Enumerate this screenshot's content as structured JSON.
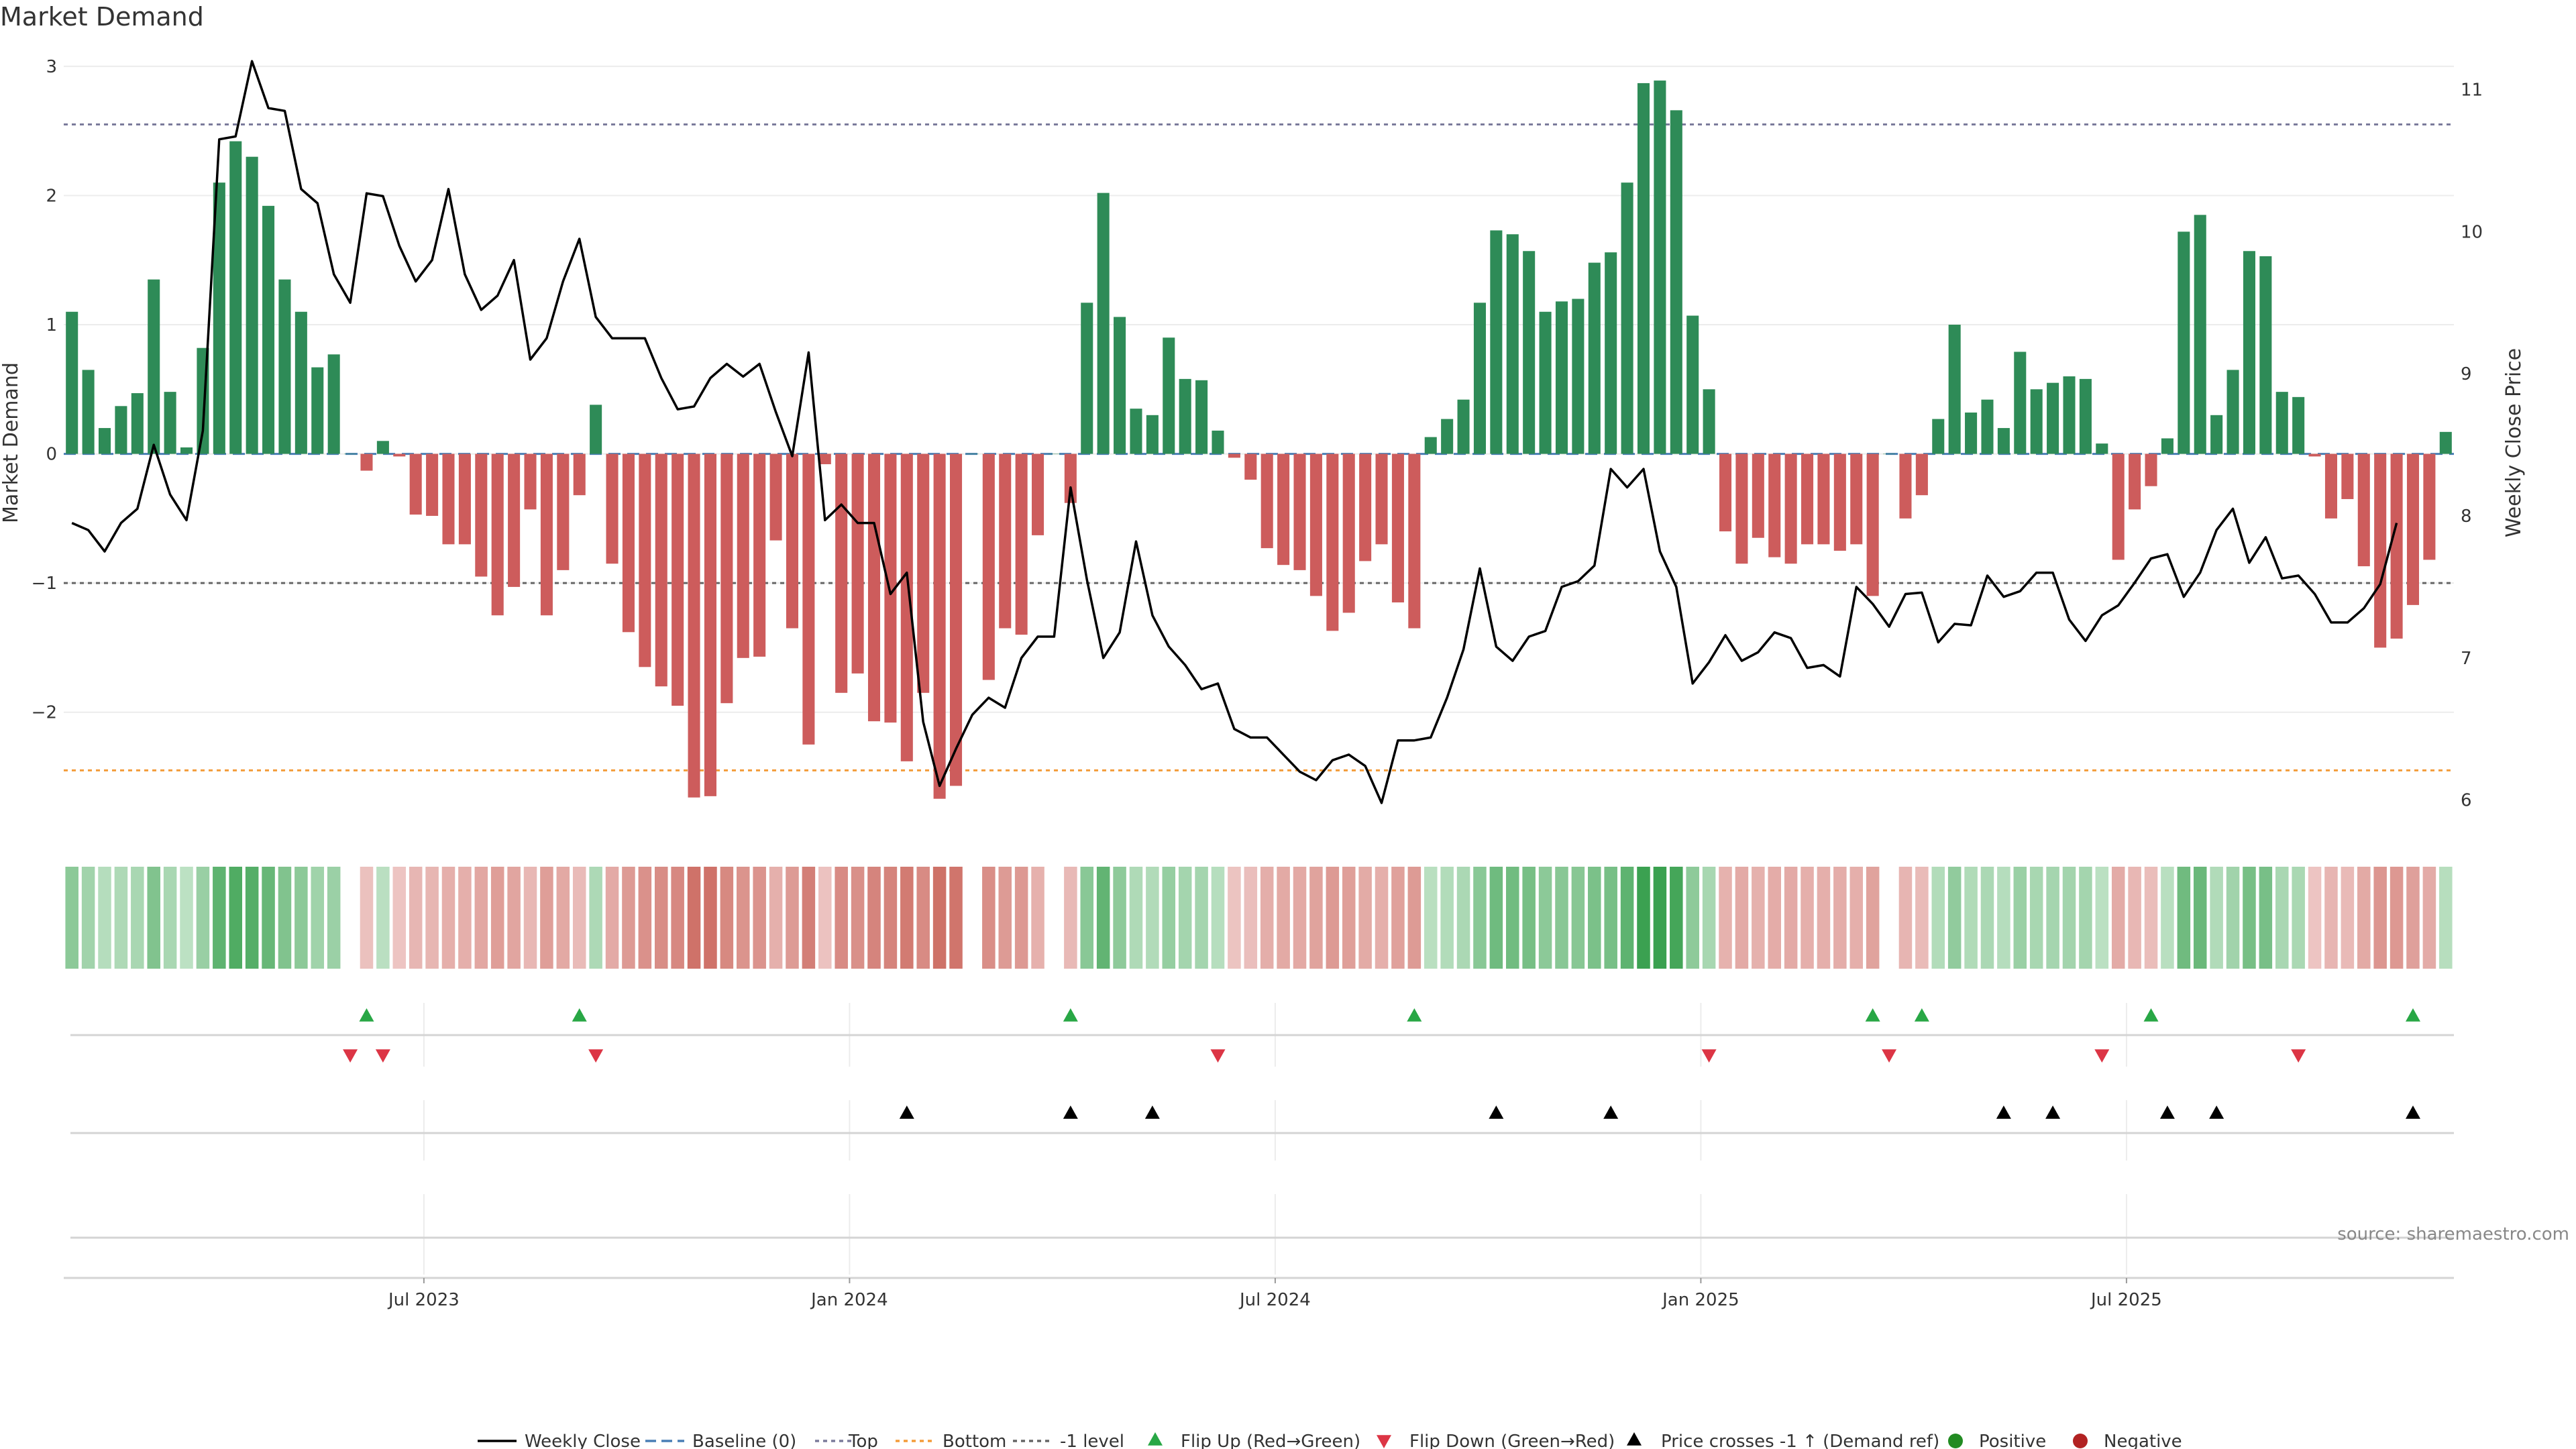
{
  "chart_data": {
    "type": "bar",
    "title": "Market Demand",
    "ylabel": "Market Demand",
    "ylabel_right": "Weekly Close Price",
    "ylim": [
      -2.9,
      3.15
    ],
    "ylim_right": [
      5.8,
      11.3
    ],
    "yticks": [
      {
        "v": 3,
        "label": "3"
      },
      {
        "v": 2,
        "label": "2"
      },
      {
        "v": 1,
        "label": "1"
      },
      {
        "v": 0,
        "label": "0"
      },
      {
        "v": -1,
        "label": "−1"
      },
      {
        "v": -2,
        "label": "−2"
      }
    ],
    "yticks_right": [
      {
        "v": 11,
        "label": "11"
      },
      {
        "v": 10,
        "label": "10"
      },
      {
        "v": 9,
        "label": "9"
      },
      {
        "v": 8,
        "label": "8"
      },
      {
        "v": 7,
        "label": "7"
      },
      {
        "v": 6,
        "label": "6"
      }
    ],
    "reference_lines": {
      "top": 2.55,
      "bottom": -2.45,
      "minus_one": -1,
      "baseline": 0
    },
    "x_ticks": [
      {
        "index": 22,
        "label": "Jul 2023"
      },
      {
        "index": 48,
        "label": "Jan 2024"
      },
      {
        "index": 74,
        "label": "Jul 2024"
      },
      {
        "index": 100,
        "label": "Jan 2025"
      },
      {
        "index": 126,
        "label": "Jul 2025"
      }
    ],
    "demand": [
      1.1,
      0.65,
      0.2,
      0.37,
      0.47,
      1.35,
      0.48,
      0.05,
      0.82,
      2.1,
      2.42,
      2.3,
      1.92,
      1.35,
      1.1,
      0.67,
      0.77,
      0,
      -0.13,
      0.1,
      -0.02,
      -0.47,
      -0.48,
      -0.7,
      -0.7,
      -0.95,
      -1.25,
      -1.03,
      -0.43,
      -1.25,
      -0.9,
      -0.32,
      0.38,
      -0.85,
      -1.38,
      -1.65,
      -1.8,
      -1.95,
      -2.66,
      -2.65,
      -1.93,
      -1.58,
      -1.57,
      -0.67,
      -1.35,
      -2.25,
      -0.08,
      -1.85,
      -1.7,
      -2.07,
      -2.08,
      -2.38,
      -1.85,
      -2.67,
      -2.57,
      0,
      -1.75,
      -1.35,
      -1.4,
      -0.63,
      0,
      -0.38,
      1.17,
      2.02,
      1.06,
      0.35,
      0.3,
      0.9,
      0.58,
      0.57,
      0.18,
      -0.03,
      -0.2,
      -0.73,
      -0.86,
      -0.9,
      -1.1,
      -1.37,
      -1.23,
      -0.83,
      -0.7,
      -1.15,
      -1.35,
      0.13,
      0.27,
      0.42,
      1.17,
      1.73,
      1.7,
      1.57,
      1.1,
      1.18,
      1.2,
      1.48,
      1.56,
      2.1,
      2.87,
      2.89,
      2.66,
      1.07,
      0.5,
      -0.6,
      -0.85,
      -0.65,
      -0.8,
      -0.85,
      -0.7,
      -0.7,
      -0.75,
      -0.7,
      -1.1,
      0,
      -0.5,
      -0.32,
      0.27,
      1.0,
      0.32,
      0.42,
      0.2,
      0.79,
      0.5,
      0.55,
      0.6,
      0.58,
      0.08,
      -0.82,
      -0.43,
      -0.25,
      0.12,
      1.72,
      1.85,
      0.3,
      0.65,
      1.57,
      1.53,
      0.48,
      0.44,
      -0.02,
      -0.5,
      -0.35,
      -0.87,
      -1.5,
      -1.43,
      -1.17,
      -0.82,
      0.17
    ],
    "close": [
      7.95,
      7.9,
      7.75,
      7.95,
      8.05,
      8.5,
      8.15,
      7.97,
      8.6,
      10.65,
      10.67,
      11.2,
      10.87,
      10.85,
      10.3,
      10.2,
      9.7,
      9.5,
      10.27,
      10.25,
      9.9,
      9.65,
      9.8,
      10.3,
      9.7,
      9.45,
      9.55,
      9.8,
      9.1,
      9.25,
      9.65,
      9.95,
      9.4,
      9.25,
      9.25,
      9.25,
      8.97,
      8.75,
      8.77,
      8.97,
      9.07,
      8.98,
      9.07,
      8.73,
      8.42,
      9.15,
      7.97,
      8.08,
      7.95,
      7.95,
      7.45,
      7.6,
      6.55,
      6.1,
      6.36,
      6.6,
      6.72,
      6.65,
      7.0,
      7.15,
      7.15,
      8.2,
      7.55,
      7.0,
      7.18,
      7.82,
      7.3,
      7.08,
      6.95,
      6.78,
      6.82,
      6.5,
      6.44,
      6.44,
      6.32,
      6.2,
      6.14,
      6.28,
      6.32,
      6.24,
      5.98,
      6.42,
      6.42,
      6.44,
      6.72,
      7.06,
      7.63,
      7.08,
      6.98,
      7.15,
      7.19,
      7.5,
      7.54,
      7.65,
      8.33,
      8.2,
      8.33,
      7.75,
      7.5,
      6.82,
      6.97,
      7.16,
      6.98,
      7.04,
      7.18,
      7.14,
      6.93,
      6.95,
      6.87,
      7.5,
      7.38,
      7.22,
      7.45,
      7.46,
      7.11,
      7.24,
      7.23,
      7.58,
      7.43,
      7.47,
      7.6,
      7.6,
      7.27,
      7.12,
      7.3,
      7.37,
      7.53,
      7.7,
      7.73,
      7.43,
      7.6,
      7.9,
      8.05,
      7.67,
      7.85,
      7.56,
      7.58,
      7.45,
      7.25,
      7.25,
      7.35,
      7.52,
      7.95
    ],
    "flip_up_indices": [
      18,
      31,
      61,
      82,
      110,
      113,
      127,
      143
    ],
    "flip_down_indices": [
      17,
      19,
      32,
      70,
      100,
      111,
      124,
      136
    ],
    "price_cross_indices": [
      51,
      61,
      66,
      87,
      94,
      118,
      121,
      128,
      131,
      143
    ],
    "legend": [
      "Weekly Close",
      "Baseline (0)",
      "Top",
      "Bottom",
      "-1 level",
      "Flip Up (Red→Green)",
      "Flip Down (Green→Red)",
      "Price crosses -1 ↑ (Demand ref)",
      "Positive",
      "Negative"
    ],
    "source": "source: sharemaestro.com"
  },
  "colors": {
    "positive": "#2e8b57",
    "negative": "#cd5c5c",
    "close_line": "#000000",
    "baseline": "#4a7fb5",
    "top": "#7b7b9b",
    "bottom": "#f39c3a",
    "minus_one": "#666666",
    "flip_up": "#28a745",
    "flip_down": "#dc3545",
    "cross": "#000000",
    "positive_dot": "#228b22",
    "negative_dot": "#b22222"
  }
}
